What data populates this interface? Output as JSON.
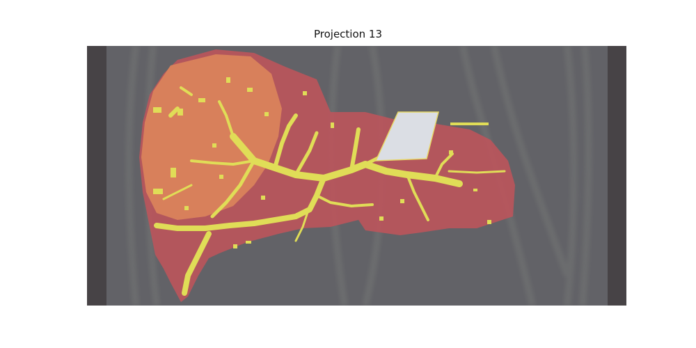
{
  "figure": {
    "title": "Projection 13"
  },
  "overlay": {
    "background": "#66666b",
    "organ_mask_color": "#c0585e",
    "upper_lobe_color": "#e38a5e",
    "vessel_color": "#e8e55a",
    "bright_marker_color": "#e3e6ec"
  }
}
